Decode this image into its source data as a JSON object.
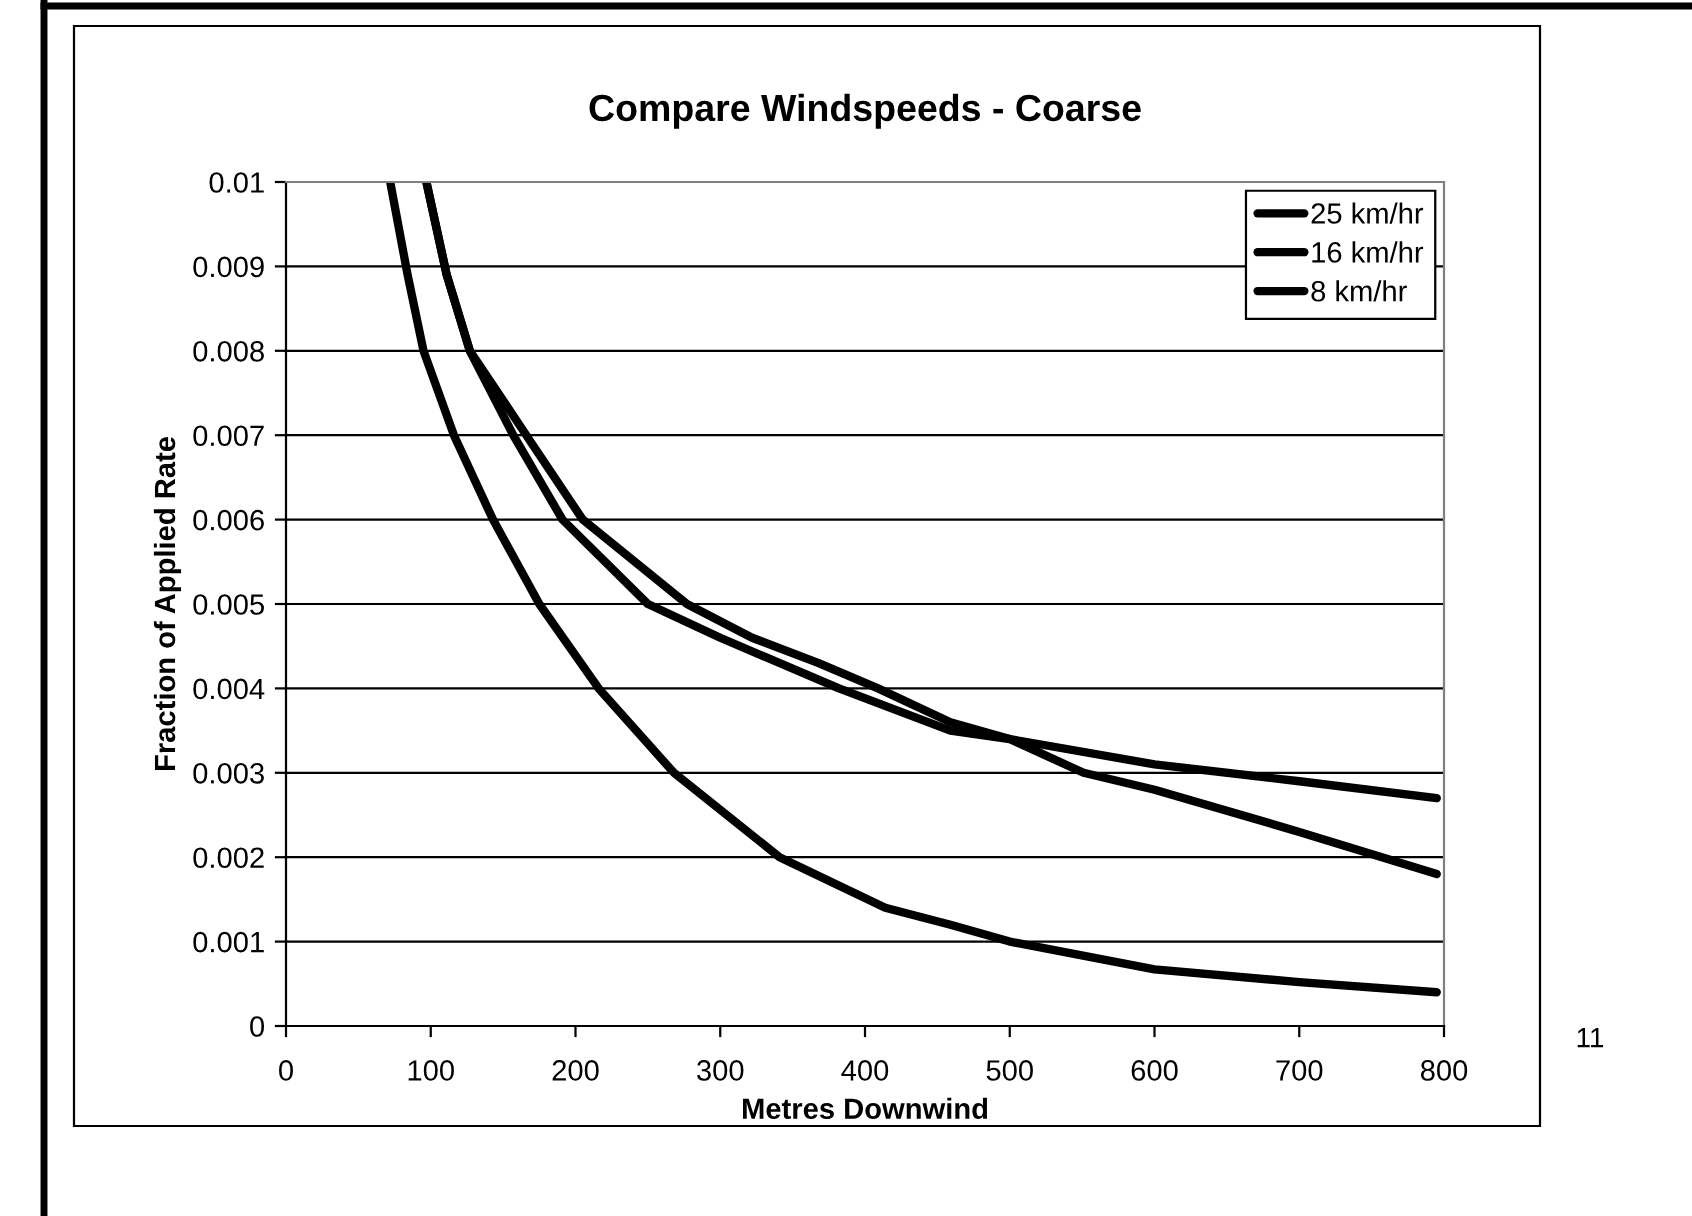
{
  "chart_data": {
    "type": "line",
    "title": "Compare Windspeeds - Coarse",
    "xlabel": "Metres Downwind",
    "ylabel": "Fraction of Applied Rate",
    "annotations": [
      "11"
    ],
    "series": [
      {
        "name": "25 km/hr",
        "color": "#000000",
        "x": [
          97,
          111,
          127,
          157,
          191,
          250,
          300,
          382,
          459,
          500,
          600,
          700,
          795
        ],
        "values": [
          0.01,
          0.0089,
          0.008,
          0.007,
          0.006,
          0.005,
          0.0046,
          0.004,
          0.0035,
          0.0034,
          0.0031,
          0.0029,
          0.0027
        ]
      },
      {
        "name": "16 km/hr",
        "color": "#000000",
        "x": [
          97,
          111,
          127,
          166,
          205,
          277,
          322,
          368,
          409,
          459,
          500,
          551,
          600,
          700,
          795
        ],
        "values": [
          0.01,
          0.0089,
          0.008,
          0.007,
          0.006,
          0.005,
          0.0046,
          0.0043,
          0.004,
          0.0036,
          0.0034,
          0.003,
          0.0028,
          0.0023,
          0.0018
        ]
      },
      {
        "name": "8 km/hr",
        "color": "#000000",
        "x": [
          72,
          84,
          95,
          116,
          143,
          175,
          216,
          268,
          341,
          414,
          459,
          500,
          600,
          700,
          795
        ],
        "values": [
          0.01,
          0.0089,
          0.008,
          0.007,
          0.006,
          0.005,
          0.004,
          0.003,
          0.002,
          0.0014,
          0.0012,
          0.001,
          0.00067,
          0.00052,
          0.0004
        ]
      }
    ],
    "xlim": [
      0,
      800
    ],
    "xticks": [
      0,
      100,
      200,
      300,
      400,
      500,
      600,
      700,
      800
    ],
    "ylim": [
      0,
      0.01
    ],
    "yticks": [
      0,
      0.001,
      0.002,
      0.003,
      0.004,
      0.005,
      0.006,
      0.007,
      0.008,
      0.009,
      0.01
    ],
    "grid": "y",
    "legend": "top right",
    "marker": "none",
    "line_style": "solid"
  }
}
